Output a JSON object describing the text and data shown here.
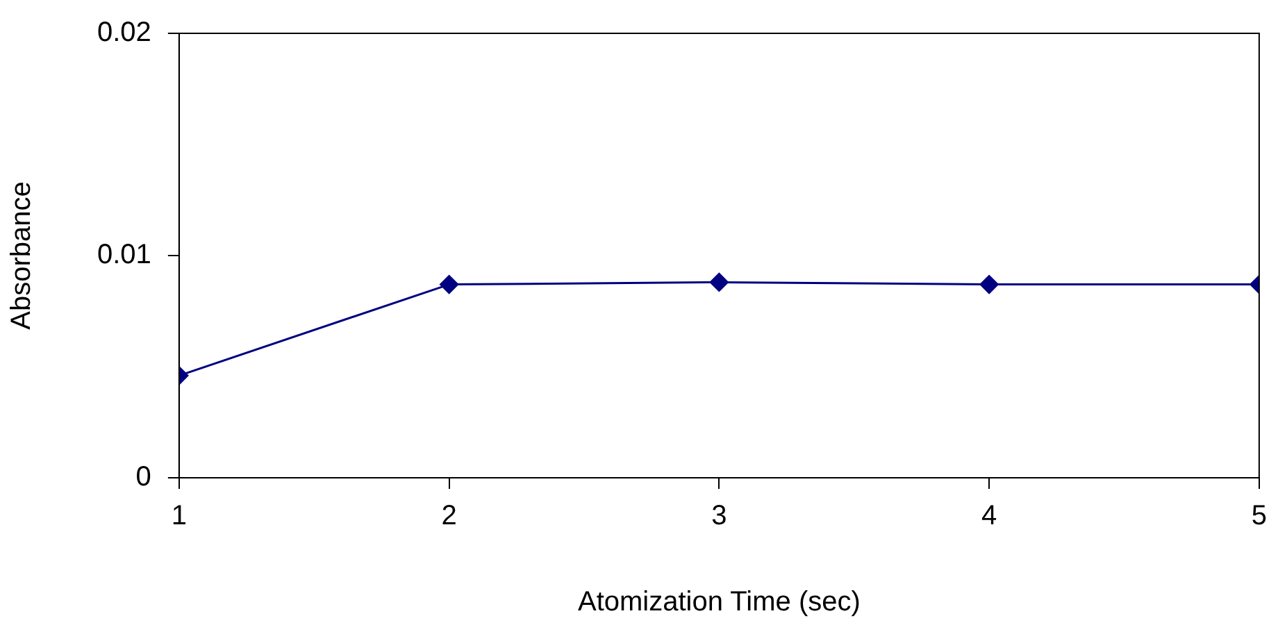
{
  "chart_data": {
    "type": "line",
    "xlabel": "Atomization Time (sec)",
    "ylabel": "Absorbance",
    "x": [
      1,
      2,
      3,
      4,
      5
    ],
    "series": [
      {
        "color": "#000080",
        "values": [
          0.0046,
          0.0087,
          0.0088,
          0.0087,
          0.0087
        ]
      }
    ],
    "xlim": [
      1,
      5
    ],
    "xticks": [
      1,
      2,
      3,
      4,
      5
    ],
    "ylim": [
      0,
      0.02
    ],
    "yticks": [
      0,
      0.01,
      0.02
    ],
    "marker": "diamond",
    "line_style": "solid",
    "grid": false,
    "legend": false
  }
}
